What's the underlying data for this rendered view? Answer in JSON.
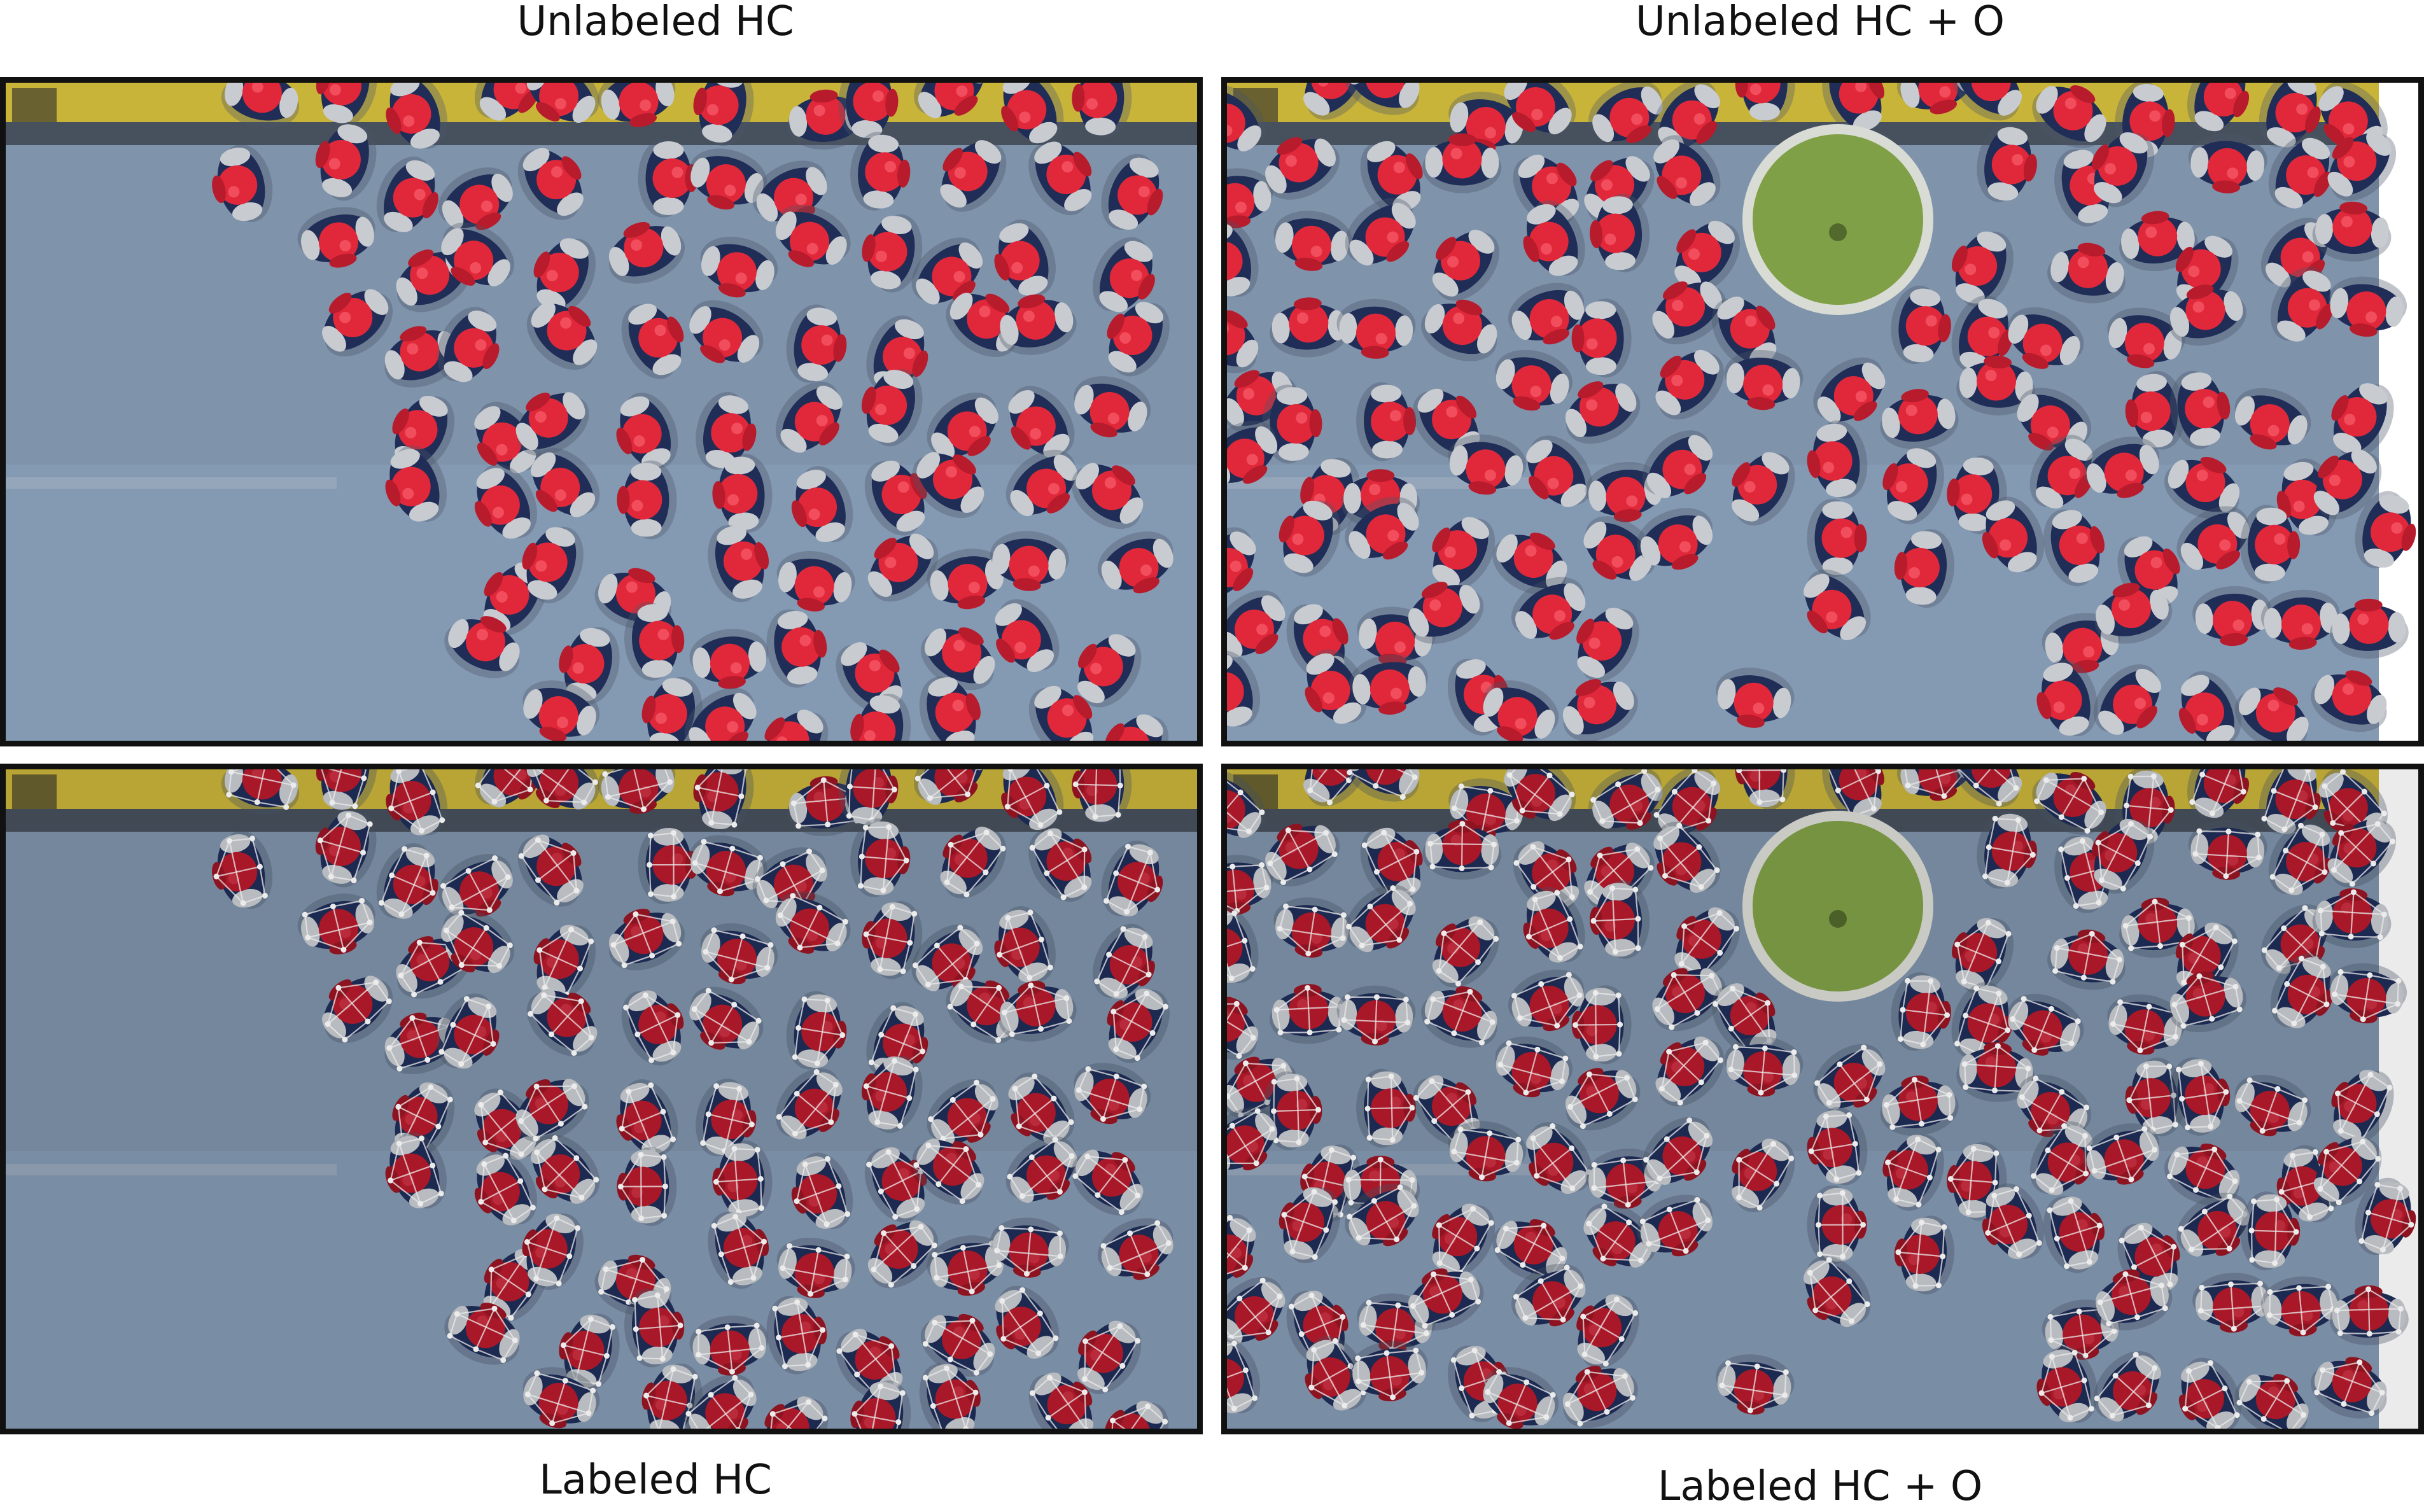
{
  "figure": {
    "panels": [
      {
        "id": "unlabeled-hc",
        "label": "Unlabeled HC",
        "obstacle": false,
        "labeled": false
      },
      {
        "id": "unlabeled-hco",
        "label": "Unlabeled HC + O",
        "obstacle": true,
        "labeled": false
      },
      {
        "id": "labeled-hc",
        "label": "Labeled HC",
        "obstacle": false,
        "labeled": true
      },
      {
        "id": "labeled-hco",
        "label": "Labeled HC + O",
        "obstacle": true,
        "labeled": true
      }
    ]
  },
  "colors": {
    "floor": "#7f93ab",
    "floor_shadow": "#4a5566",
    "wall": "#c9b43a",
    "uniform": "#1f2d57",
    "shirt": "#c8cbd0",
    "hat": "#e0283a",
    "hat_dark": "#b71b2c",
    "barrel_rim": "#d9dcd4",
    "barrel_water": "#7fa046",
    "keypoint": "#ffffff",
    "frame": "#111111"
  }
}
